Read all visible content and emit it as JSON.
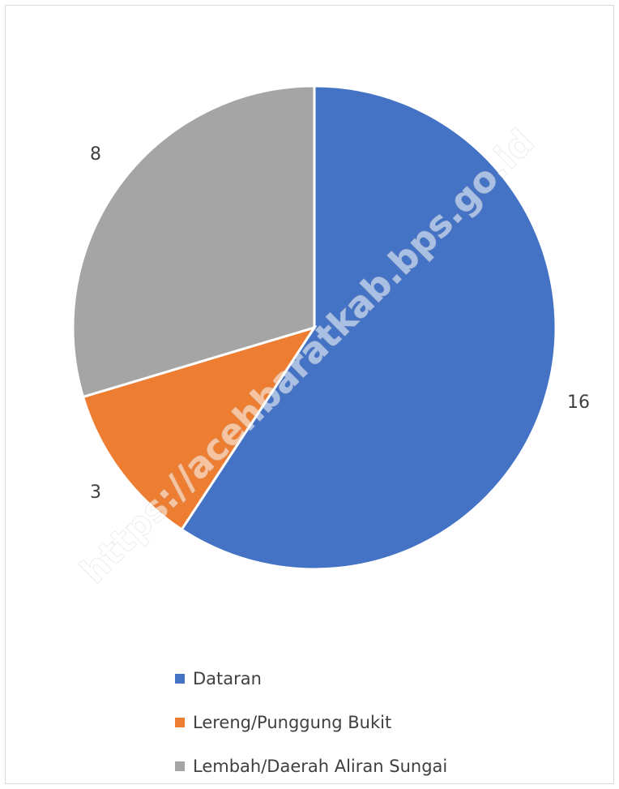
{
  "chart_data": {
    "type": "pie",
    "title": "",
    "categories": [
      "Dataran",
      "Lereng/Punggung Bukit",
      "Lembah/Daerah Aliran Sungai"
    ],
    "values": [
      16,
      3,
      8
    ],
    "data_labels": [
      "16",
      "3",
      "8"
    ],
    "colors": [
      "#4472c4",
      "#ed7d31",
      "#a5a5a5"
    ],
    "legend_position": "bottom",
    "start_angle": "12 o'clock, clockwise"
  },
  "watermark": "https://acehbaratkab.bps.go.id"
}
